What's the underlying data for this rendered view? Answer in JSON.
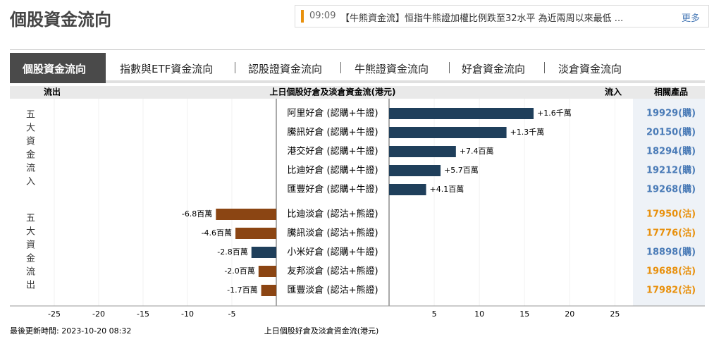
{
  "header": {
    "title": "個股資金流向",
    "news_time": "09:09",
    "news_text": "【牛熊資金流】恒指牛熊證加權比例跌至32水平 為近兩周以來最低 ...",
    "more": "更多"
  },
  "tabs": [
    "個股資金流向",
    "指數與ETF資金流向",
    "認股證資金流向",
    "牛熊證資金流向",
    "好倉資金流向",
    "淡倉資金流向"
  ],
  "columns": {
    "outflow": "流出",
    "center": "上日個股好倉及淡倉資金流(港元)",
    "inflow": "流入",
    "products": "相關產品"
  },
  "groups": [
    "五大資金流入",
    "五大資金流出"
  ],
  "chart_data": {
    "type": "diverging-bar",
    "categories": [
      "阿里好倉 (認購+牛證)",
      "騰訊好倉 (認購+牛證)",
      "港交好倉 (認購+牛證)",
      "比迪好倉 (認購+牛證)",
      "匯豐好倉 (認購+牛證)",
      "比迪淡倉 (認沽+熊證)",
      "騰訊淡倉 (認沽+熊證)",
      "小米好倉 (認購+牛證)",
      "友邦淡倉 (認沽+熊證)",
      "匯豐淡倉 (認沽+熊證)"
    ],
    "values": [
      16,
      13,
      7.4,
      5.7,
      4.1,
      -6.8,
      -4.6,
      -2.8,
      -2.0,
      -1.7
    ],
    "value_labels": [
      "+1.6千萬",
      "+1.3千萬",
      "+7.4百萬",
      "+5.7百萬",
      "+4.1百萬",
      "-6.8百萬",
      "-4.6百萬",
      "-2.8百萬",
      "-2.0百萬",
      "-1.7百萬"
    ],
    "bar_colors": [
      "#1f3f5b",
      "#1f3f5b",
      "#1f3f5b",
      "#1f3f5b",
      "#1f3f5b",
      "#8b4513",
      "#8b4513",
      "#1f3f5b",
      "#8b4513",
      "#8b4513"
    ],
    "products": [
      "19929(購)",
      "20150(購)",
      "18294(購)",
      "19212(購)",
      "19268(購)",
      "17950(沽)",
      "17776(沽)",
      "18898(購)",
      "19688(沽)",
      "17982(沽)"
    ],
    "product_colors": [
      "#4a7bb7",
      "#4a7bb7",
      "#4a7bb7",
      "#4a7bb7",
      "#4a7bb7",
      "#e8900c",
      "#e8900c",
      "#4a7bb7",
      "#e8900c",
      "#e8900c"
    ],
    "xlim": [
      -30,
      27
    ],
    "xticks": [
      -25,
      -20,
      -15,
      -10,
      -5,
      5,
      10,
      15,
      20,
      25
    ],
    "grid": true
  },
  "footer": {
    "updated": "最後更新時間: 2023-10-20 08:32",
    "caption": "上日個股好倉及淡倉資金流(港元)"
  }
}
